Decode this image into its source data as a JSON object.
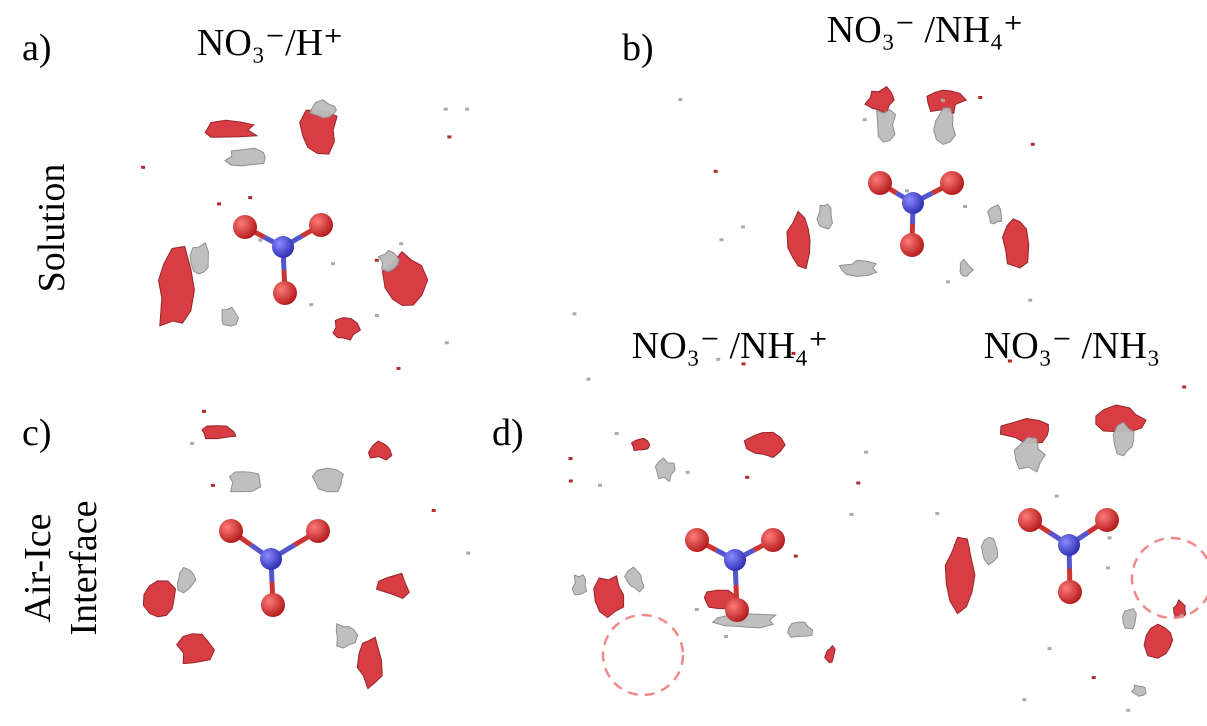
{
  "panels": [
    {
      "letter": "a)",
      "title": "NO₃⁻/H⁺"
    },
    {
      "letter": "b)",
      "title": "NO₃⁻ /NH₄⁺"
    },
    {
      "letter": "c)"
    },
    {
      "letter": "d)",
      "titles": [
        "NO₃⁻ /NH₄⁺",
        "NO₃⁻ /NH₃"
      ]
    }
  ],
  "row_labels": [
    {
      "lines": [
        "Solution"
      ]
    },
    {
      "lines": [
        "Air-Ice",
        "Interface"
      ]
    }
  ]
}
